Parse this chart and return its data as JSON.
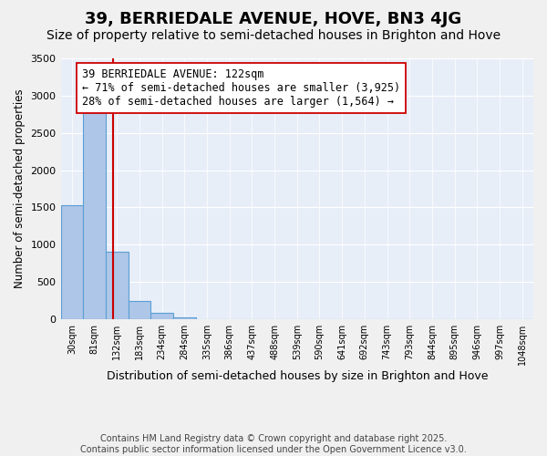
{
  "title": "39, BERRIEDALE AVENUE, HOVE, BN3 4JG",
  "subtitle": "Size of property relative to semi-detached houses in Brighton and Hove",
  "xlabel": "Distribution of semi-detached houses by size in Brighton and Hove",
  "ylabel": "Number of semi-detached properties",
  "bin_labels": [
    "30sqm",
    "81sqm",
    "132sqm",
    "183sqm",
    "234sqm",
    "284sqm",
    "335sqm",
    "386sqm",
    "437sqm",
    "488sqm",
    "539sqm",
    "590sqm",
    "641sqm",
    "692sqm",
    "743sqm",
    "793sqm",
    "844sqm",
    "895sqm",
    "946sqm",
    "997sqm",
    "1048sqm"
  ],
  "bar_values": [
    1530,
    2780,
    910,
    240,
    80,
    30,
    5,
    0,
    0,
    0,
    0,
    0,
    0,
    0,
    0,
    0,
    0,
    0,
    0,
    0,
    0
  ],
  "bar_color": "#aec6e8",
  "bar_edge_color": "#5a9fd4",
  "property_line_color": "#cc0000",
  "annotation_text": "39 BERRIEDALE AVENUE: 122sqm\n← 71% of semi-detached houses are smaller (3,925)\n28% of semi-detached houses are larger (1,564) →",
  "annotation_box_color": "#ffffff",
  "annotation_box_edge": "#cc0000",
  "ylim": [
    0,
    3500
  ],
  "yticks": [
    0,
    500,
    1000,
    1500,
    2000,
    2500,
    3000,
    3500
  ],
  "background_color": "#e8eef8",
  "fig_background_color": "#f0f0f0",
  "footer_text": "Contains HM Land Registry data © Crown copyright and database right 2025.\nContains public sector information licensed under the Open Government Licence v3.0.",
  "title_fontsize": 13,
  "subtitle_fontsize": 10,
  "annotation_fontsize": 8.5,
  "footer_fontsize": 7.0
}
